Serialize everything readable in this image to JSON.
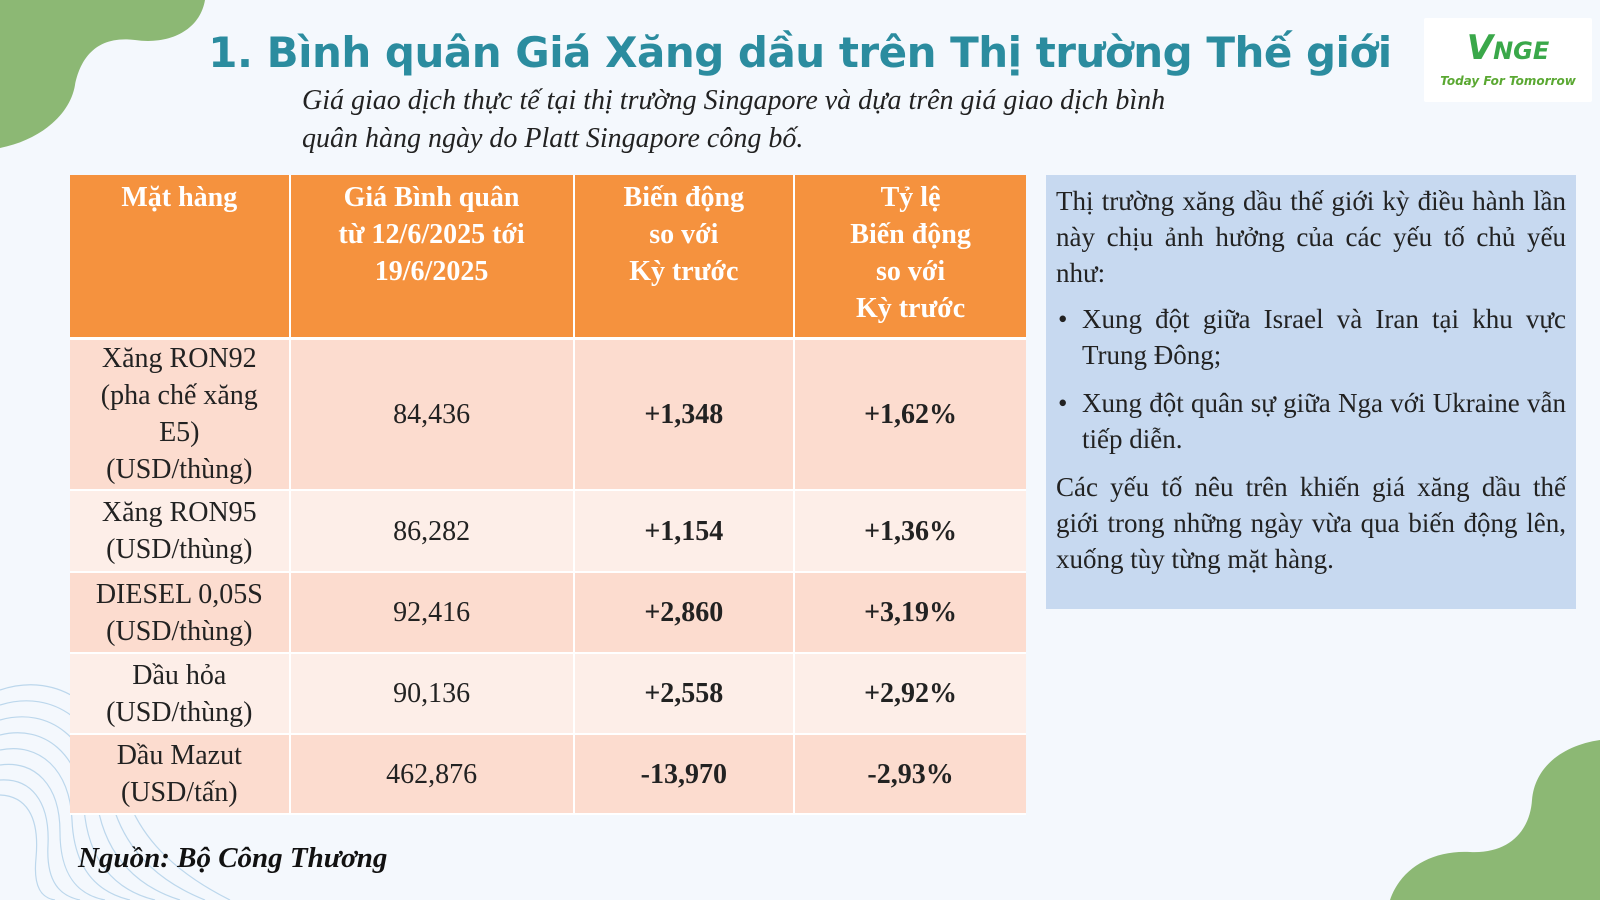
{
  "header": {
    "title": "1. Bình quân Giá Xăng dầu trên Thị trường Thế giới",
    "subtitle_line1": "Giá giao dịch thực tế tại thị trường Singapore và dựa trên giá giao dịch bình",
    "subtitle_line2": "quân hàng ngày do Platt Singapore công bố."
  },
  "logo": {
    "brand_first": "V",
    "brand_rest": "NGE",
    "tagline": "Today For Tomorrow"
  },
  "table": {
    "headers": [
      [
        "Mặt hàng"
      ],
      [
        "Giá Bình quân",
        "từ 12/6/2025 tới",
        "19/6/2025"
      ],
      [
        "Biến động",
        "so với",
        "Kỳ trước"
      ],
      [
        "Tỷ lệ",
        "Biến động",
        "so với",
        "Kỳ trước"
      ]
    ],
    "rows": [
      {
        "item": [
          "Xăng RON92",
          "(pha chế xăng",
          "E5)",
          "(USD/thùng)"
        ],
        "price": "84,436",
        "change": "+1,348",
        "rate": "+1,62%",
        "trend": "up"
      },
      {
        "item": [
          "Xăng RON95",
          "(USD/thùng)"
        ],
        "price": "86,282",
        "change": "+1,154",
        "rate": "+1,36%",
        "trend": "up"
      },
      {
        "item": [
          "DIESEL 0,05S",
          "(USD/thùng)"
        ],
        "price": "92,416",
        "change": "+2,860",
        "rate": "+3,19%",
        "trend": "up"
      },
      {
        "item": [
          "Dầu hỏa",
          "(USD/thùng)"
        ],
        "price": "90,136",
        "change": "+2,558",
        "rate": "+2,92%",
        "trend": "up"
      },
      {
        "item": [
          "Dầu Mazut",
          "(USD/tấn)"
        ],
        "price": "462,876",
        "change": "-13,970",
        "rate": "-2,93%",
        "trend": "down"
      }
    ]
  },
  "source": "Nguồn: Bộ Công Thương",
  "panel": {
    "intro": "Thị trường xăng dầu thế giới kỳ điều hành lần này chịu ảnh hưởng của các yếu tố chủ yếu như:",
    "bullets": [
      "Xung đột giữa Israel và Iran tại khu vực Trung Đông;",
      "Xung đột quân sự giữa Nga với Ukraine vẫn tiếp diễn."
    ],
    "conclusion": "Các yếu tố nêu trên khiến giá xăng dầu thế giới trong những ngày vừa qua biến động lên, xuống tùy từng mặt hàng."
  },
  "colors": {
    "title": "#2b8c9f",
    "header_bg": "#f5923e",
    "row_odd": "#fcdccf",
    "row_even": "#fdeee8",
    "positive": "#22a84a",
    "negative": "#e01e1e",
    "panel_bg": "#c7d9f0",
    "decor_green": "#8cb874"
  },
  "icons": [
    "leaf-blob-decoration",
    "wave-line-decoration",
    "bullet-dot"
  ]
}
